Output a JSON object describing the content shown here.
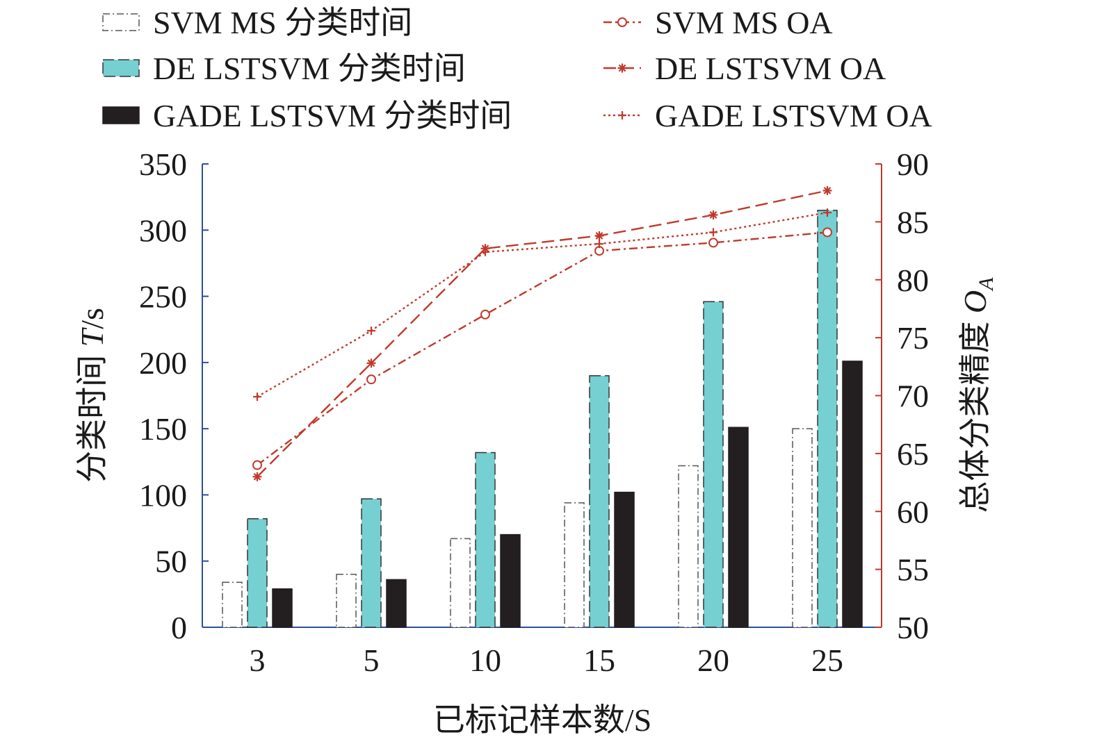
{
  "chart_data": {
    "type": "bar",
    "x_categories": [
      "3",
      "5",
      "10",
      "15",
      "20",
      "25"
    ],
    "xlabel": "已标记样本数/S",
    "ylabel_left": {
      "text": "分类时间 ",
      "italic": "T",
      "suffix": "/s"
    },
    "ylabel_right": {
      "text": "总体分类精度 ",
      "italic": "O",
      "subscript": "A"
    },
    "ylim_left": [
      0,
      350
    ],
    "yticks_left": [
      0,
      50,
      100,
      150,
      200,
      250,
      300,
      350
    ],
    "ylim_right": [
      50,
      90
    ],
    "yticks_right": [
      50,
      55,
      60,
      65,
      70,
      75,
      80,
      85,
      90
    ],
    "legend_position": "top",
    "bar_series": [
      {
        "name": "SVM MS 分类时间",
        "values": [
          34,
          40,
          67,
          94,
          122,
          150
        ],
        "fill": "#ffffff",
        "stroke": "#555555",
        "dash": "10 4 2 4"
      },
      {
        "name": "DE LSTSVM 分类时间",
        "values": [
          82,
          97,
          132,
          190,
          246,
          315
        ],
        "fill": "#76cfd1",
        "stroke": "#333333",
        "dash": "16 6"
      },
      {
        "name": "GADE LSTSVM 分类时间",
        "values": [
          29,
          36,
          70,
          102,
          151,
          201
        ],
        "fill": "#231f20",
        "stroke": "#231f20",
        "dash": ""
      }
    ],
    "line_series": [
      {
        "name": "SVM MS OA",
        "values": [
          64,
          71.4,
          77,
          82.5,
          83.2,
          84.1
        ],
        "color": "#c0392b",
        "dash": "12 5 3 5",
        "marker": "circle"
      },
      {
        "name": "DE LSTSVM OA",
        "values": [
          63,
          72.8,
          82.7,
          83.8,
          85.6,
          87.7
        ],
        "color": "#c0392b",
        "dash": "18 8",
        "marker": "star"
      },
      {
        "name": "GADE LSTSVM OA",
        "values": [
          69.9,
          75.6,
          82.4,
          83.1,
          84.1,
          85.8
        ],
        "color": "#c0392b",
        "dash": "3 4",
        "marker": "plus"
      }
    ]
  }
}
